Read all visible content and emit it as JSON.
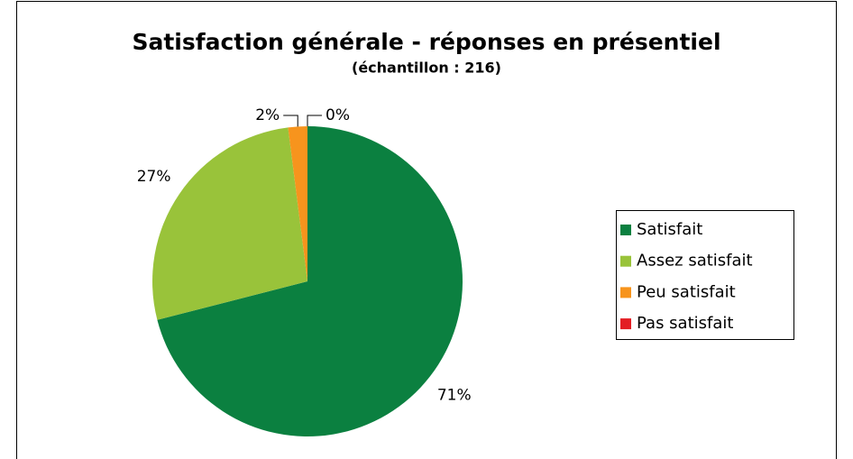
{
  "chart_data": {
    "type": "pie",
    "title": "Satisfaction générale - réponses en présentiel",
    "subtitle": "(échantillon : 216)",
    "categories": [
      "Satisfait",
      "Assez satisfait",
      "Peu satisfait",
      "Pas satisfait"
    ],
    "values": [
      71,
      27,
      2,
      0
    ],
    "value_labels": [
      "71%",
      "27%",
      "2%",
      "0%"
    ],
    "colors": [
      "#0b8040",
      "#99c33a",
      "#f7941d",
      "#e31e24"
    ],
    "legend": "right"
  }
}
